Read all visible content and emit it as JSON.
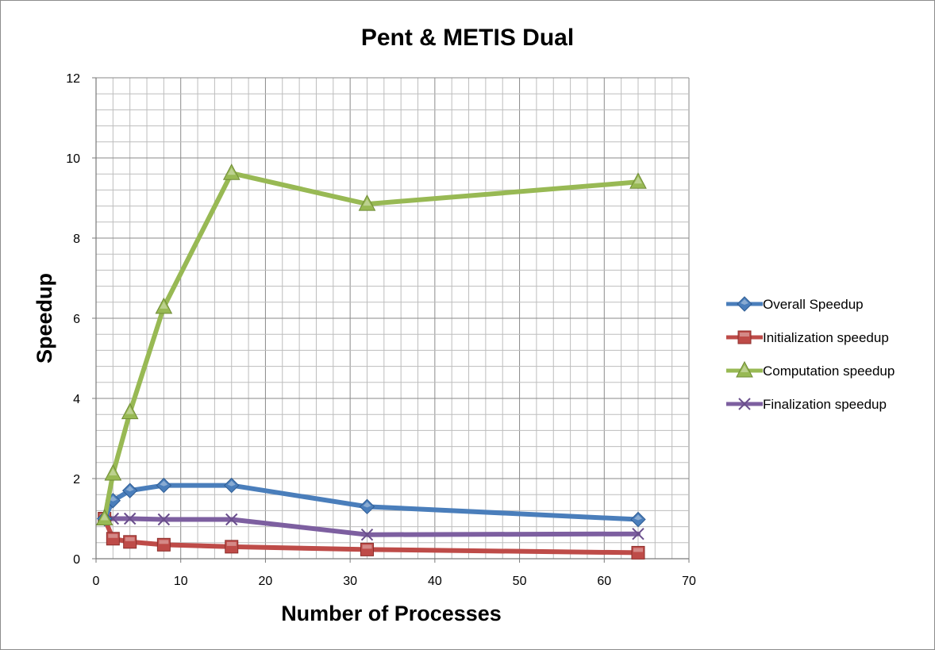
{
  "chart_data": {
    "type": "line",
    "title": "Pent & METIS Dual",
    "xlabel": "Number of Processes",
    "ylabel": "Speedup",
    "xlim": [
      0,
      70
    ],
    "ylim": [
      0,
      12
    ],
    "x_ticks": [
      0,
      10,
      20,
      30,
      40,
      50,
      60,
      70
    ],
    "y_ticks": [
      0,
      2,
      4,
      6,
      8,
      10,
      12
    ],
    "grid": true,
    "minor_grid": true,
    "legend_position": "right",
    "x": [
      1,
      2,
      4,
      8,
      16,
      32,
      64
    ],
    "series": [
      {
        "name": "Overall Speedup",
        "color": "#4a7ebb",
        "marker": "diamond",
        "values": [
          1.0,
          1.45,
          1.7,
          1.83,
          1.83,
          1.3,
          0.98
        ]
      },
      {
        "name": "Initialization speedup",
        "color": "#be4b48",
        "marker": "square",
        "values": [
          1.0,
          0.5,
          0.42,
          0.35,
          0.3,
          0.23,
          0.15
        ]
      },
      {
        "name": "Computation speedup",
        "color": "#98b954",
        "marker": "triangle",
        "values": [
          1.0,
          2.12,
          3.65,
          6.28,
          9.62,
          8.85,
          9.4
        ]
      },
      {
        "name": "Finalization speedup",
        "color": "#7d5fa0",
        "marker": "x",
        "values": [
          1.0,
          1.0,
          1.0,
          0.98,
          0.98,
          0.6,
          0.62
        ]
      }
    ]
  }
}
